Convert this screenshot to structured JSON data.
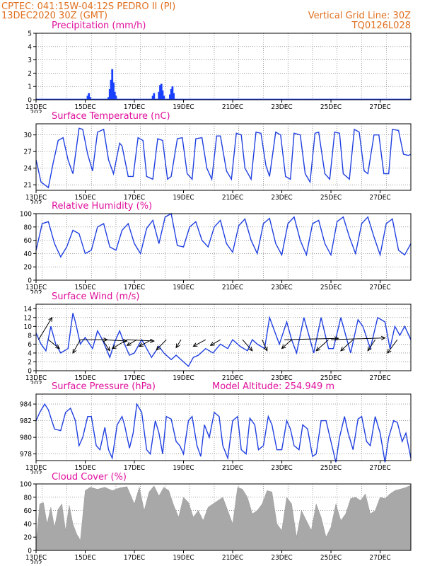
{
  "header": {
    "line1": "CPTEC:   041:15W-04:12S   PEDRO II (PI)",
    "line2": "13DEC2020 30Z (GMT)",
    "grid_note": "Vertical Grid Line: 30Z",
    "code": "TQ0126L028"
  },
  "colors": {
    "header": "#e07020",
    "title": "#e0109c",
    "line": "#2040e0",
    "bar": "#1a40ff",
    "cloud": "#a8a8a8",
    "wind_arrow": "#000000"
  },
  "x_axis": {
    "labels": [
      "13DEC",
      "15DEC",
      "17DEC",
      "19DEC",
      "21DEC",
      "23DEC",
      "25DEC",
      "27DEC"
    ],
    "positions_days": [
      0,
      2,
      4,
      6,
      8,
      10,
      12,
      14
    ],
    "range_days": [
      0,
      15.25
    ],
    "clipped_label": "202"
  },
  "chart_data": [
    {
      "type": "bar",
      "title": "Precipitation (mm/h)",
      "ylim": [
        0,
        5
      ],
      "yticks": [
        0,
        1,
        2,
        3,
        4,
        5
      ],
      "x_days": [
        2.1,
        2.15,
        2.2,
        2.95,
        3.0,
        3.05,
        3.1,
        3.15,
        3.2,
        3.25,
        4.75,
        4.8,
        5.0,
        5.05,
        5.1,
        5.15,
        5.2,
        5.45,
        5.5,
        5.55,
        5.6,
        7.0,
        10.5,
        11.0
      ],
      "values": [
        0.3,
        0.5,
        0.2,
        0.2,
        0.8,
        1.5,
        2.3,
        1.3,
        0.6,
        0.3,
        0.3,
        0.5,
        0.6,
        1.1,
        1.2,
        0.7,
        0.3,
        0.4,
        0.8,
        1.0,
        0.5,
        0.05,
        0.05,
        0.05
      ]
    },
    {
      "type": "line",
      "title": "Surface Temperature (nC)",
      "ylim": [
        20,
        32
      ],
      "yticks": [
        21,
        24,
        27,
        30
      ],
      "x_days": [
        0,
        0.2,
        0.35,
        0.5,
        0.7,
        0.9,
        1.1,
        1.3,
        1.5,
        1.75,
        1.9,
        2.1,
        2.3,
        2.5,
        2.75,
        2.95,
        3.15,
        3.4,
        3.5,
        3.75,
        3.95,
        4.15,
        4.35,
        4.5,
        4.75,
        4.95,
        5.15,
        5.35,
        5.5,
        5.75,
        5.95,
        6.15,
        6.35,
        6.5,
        6.75,
        6.95,
        7.15,
        7.35,
        7.5,
        7.75,
        7.95,
        8.15,
        8.35,
        8.5,
        8.75,
        8.95,
        9.15,
        9.35,
        9.5,
        9.75,
        9.95,
        10.15,
        10.35,
        10.5,
        10.75,
        10.95,
        11.15,
        11.35,
        11.5,
        11.75,
        11.95,
        12.15,
        12.35,
        12.5,
        12.75,
        12.95,
        13.15,
        13.35,
        13.5,
        13.75,
        13.95,
        14.15,
        14.35,
        14.5,
        14.75,
        14.95,
        15.15,
        15.25
      ],
      "values": [
        25.5,
        21.5,
        21.0,
        20.5,
        25.0,
        29.0,
        29.5,
        25.5,
        23.0,
        31.2,
        31.0,
        26.5,
        23.5,
        30.5,
        31.0,
        25.5,
        23.0,
        28.5,
        28.0,
        22.5,
        22.5,
        29.5,
        29.0,
        22.5,
        22.0,
        29.3,
        29.0,
        22.0,
        22.5,
        29.3,
        29.5,
        23.0,
        22.0,
        29.3,
        29.5,
        24.0,
        22.0,
        29.8,
        29.8,
        23.5,
        22.0,
        30.3,
        30.0,
        24.0,
        22.0,
        30.5,
        30.3,
        24.5,
        22.5,
        30.5,
        30.0,
        22.5,
        22.0,
        30.3,
        30.0,
        23.0,
        21.5,
        30.3,
        30.5,
        23.0,
        22.0,
        30.5,
        30.3,
        23.0,
        22.0,
        31.0,
        30.5,
        23.5,
        23.0,
        30.0,
        30.0,
        23.0,
        23.0,
        31.0,
        30.8,
        26.5,
        26.3,
        26.5
      ]
    },
    {
      "type": "line",
      "title": "Relative Humidity (%)",
      "ylim": [
        0,
        100
      ],
      "yticks": [
        0,
        20,
        40,
        60,
        80,
        100
      ],
      "x_days": [
        0,
        0.25,
        0.5,
        0.75,
        1.0,
        1.25,
        1.5,
        1.75,
        2.0,
        2.25,
        2.5,
        2.75,
        3.0,
        3.25,
        3.5,
        3.75,
        4.0,
        4.25,
        4.5,
        4.75,
        5.0,
        5.25,
        5.5,
        5.75,
        6.0,
        6.25,
        6.5,
        6.75,
        7.0,
        7.25,
        7.5,
        7.75,
        8.0,
        8.25,
        8.5,
        8.75,
        9.0,
        9.25,
        9.5,
        9.75,
        10.0,
        10.25,
        10.5,
        10.75,
        11.0,
        11.25,
        11.5,
        11.75,
        12.0,
        12.25,
        12.5,
        12.75,
        13.0,
        13.25,
        13.5,
        13.75,
        14.0,
        14.25,
        14.5,
        14.75,
        15.0,
        15.25
      ],
      "values": [
        45,
        85,
        88,
        55,
        35,
        50,
        75,
        70,
        40,
        45,
        80,
        85,
        50,
        45,
        75,
        85,
        55,
        40,
        78,
        90,
        55,
        95,
        100,
        52,
        50,
        80,
        88,
        60,
        50,
        80,
        90,
        55,
        42,
        82,
        92,
        60,
        40,
        85,
        93,
        55,
        38,
        85,
        95,
        60,
        38,
        85,
        90,
        55,
        38,
        88,
        95,
        65,
        40,
        85,
        95,
        65,
        38,
        85,
        92,
        45,
        38,
        55
      ]
    },
    {
      "type": "line",
      "title": "Surface Wind (m/s)",
      "ylim": [
        0,
        15
      ],
      "yticks": [
        0,
        2,
        4,
        6,
        8,
        10,
        12,
        14
      ],
      "x_days": [
        0,
        0.2,
        0.4,
        0.6,
        0.8,
        1.0,
        1.3,
        1.5,
        1.6,
        1.8,
        2.0,
        2.3,
        2.5,
        2.7,
        3.0,
        3.2,
        3.4,
        3.6,
        3.8,
        4.0,
        4.3,
        4.5,
        4.7,
        5.0,
        5.2,
        5.5,
        5.7,
        6.0,
        6.2,
        6.4,
        6.6,
        6.9,
        7.2,
        7.5,
        7.8,
        8.0,
        8.3,
        8.6,
        8.8,
        9.0,
        9.3,
        9.5,
        9.7,
        9.9,
        10.2,
        10.4,
        10.6,
        10.9,
        11.1,
        11.3,
        11.6,
        11.9,
        12.1,
        12.4,
        12.6,
        12.8,
        13.1,
        13.3,
        13.6,
        13.9,
        14.2,
        14.4,
        14.6,
        14.8,
        15.0,
        15.25
      ],
      "values": [
        8.5,
        6.0,
        4.5,
        10.0,
        6.0,
        4.0,
        5.0,
        13.0,
        11.0,
        6.0,
        7.5,
        5.0,
        9.0,
        7.0,
        3.0,
        6.5,
        9.0,
        6.0,
        3.5,
        4.0,
        7.0,
        5.0,
        3.0,
        5.5,
        4.0,
        2.5,
        3.5,
        2.0,
        1.0,
        3.0,
        3.5,
        5.0,
        4.0,
        6.0,
        5.0,
        7.0,
        5.5,
        4.5,
        7.0,
        6.0,
        5.0,
        12.0,
        9.0,
        6.0,
        11.0,
        7.0,
        4.0,
        12.0,
        8.0,
        4.0,
        12.0,
        5.0,
        5.0,
        12.0,
        8.0,
        4.0,
        11.5,
        10.0,
        5.0,
        12.0,
        11.0,
        5.0,
        10.0,
        8.0,
        10.0,
        7.0
      ],
      "arrows": [
        {
          "x_days": 0.1,
          "dx": 0.55,
          "dy": 5.0
        },
        {
          "x_days": 0.5,
          "dx": 0.45,
          "dy": -2.0
        },
        {
          "x_days": 1.8,
          "dx": 1.1,
          "dy": 0.0
        },
        {
          "x_days": 1.8,
          "dx": -0.3,
          "dy": -3.0
        },
        {
          "x_days": 2.7,
          "dx": 1.0,
          "dy": -0.3
        },
        {
          "x_days": 2.7,
          "dx": 0.3,
          "dy": -2.5
        },
        {
          "x_days": 3.7,
          "dx": 1.1,
          "dy": -0.3
        },
        {
          "x_days": 3.7,
          "dx": -0.6,
          "dy": -2.0
        },
        {
          "x_days": 4.1,
          "dx": -0.4,
          "dy": -1.3
        },
        {
          "x_days": 4.7,
          "dx": -0.5,
          "dy": -1.5
        },
        {
          "x_days": 5.3,
          "dx": -0.4,
          "dy": -2.3
        },
        {
          "x_days": 5.9,
          "dx": -0.2,
          "dy": -1.8
        },
        {
          "x_days": 6.9,
          "dx": -0.5,
          "dy": -1.5
        },
        {
          "x_days": 7.5,
          "dx": -0.4,
          "dy": -1.3
        },
        {
          "x_days": 8.4,
          "dx": 0.4,
          "dy": -2.5
        },
        {
          "x_days": 9.2,
          "dx": 0.2,
          "dy": -2.5
        },
        {
          "x_days": 10.4,
          "dx": -0.4,
          "dy": -2.0
        },
        {
          "x_days": 10.1,
          "dx": 2.2,
          "dy": 0.3
        },
        {
          "x_days": 11.9,
          "dx": -0.5,
          "dy": -2.5
        },
        {
          "x_days": 12.9,
          "dx": -0.5,
          "dy": -2.5
        },
        {
          "x_days": 12.0,
          "dx": 2.2,
          "dy": 0.4
        },
        {
          "x_days": 13.8,
          "dx": -0.3,
          "dy": -2.5
        },
        {
          "x_days": 14.7,
          "dx": -0.4,
          "dy": -3.0
        }
      ]
    },
    {
      "type": "line",
      "title": "Surface Pressure (hPa)",
      "annotation": "Model Altitude: 254.949  m",
      "ylim": [
        977.2,
        985.2
      ],
      "yticks": [
        978,
        980,
        982,
        984
      ],
      "x_days": [
        0,
        0.15,
        0.35,
        0.5,
        0.75,
        1.0,
        1.2,
        1.4,
        1.6,
        1.75,
        1.9,
        2.1,
        2.25,
        2.45,
        2.6,
        2.8,
        2.95,
        3.1,
        3.3,
        3.5,
        3.6,
        3.8,
        3.95,
        4.1,
        4.3,
        4.5,
        4.65,
        4.85,
        5.0,
        5.15,
        5.3,
        5.5,
        5.7,
        5.85,
        6.0,
        6.2,
        6.35,
        6.55,
        6.7,
        6.85,
        7.05,
        7.25,
        7.45,
        7.6,
        7.8,
        8.0,
        8.2,
        8.35,
        8.55,
        8.7,
        8.9,
        9.05,
        9.25,
        9.45,
        9.6,
        9.8,
        10.0,
        10.2,
        10.35,
        10.5,
        10.7,
        10.85,
        11.05,
        11.25,
        11.4,
        11.6,
        11.8,
        12.0,
        12.2,
        12.35,
        12.55,
        12.7,
        12.9,
        13.1,
        13.25,
        13.45,
        13.6,
        13.8,
        14.0,
        14.2,
        14.35,
        14.55,
        14.7,
        14.9,
        15.05,
        15.25
      ],
      "values": [
        982.0,
        983.0,
        984.0,
        983.3,
        981.0,
        980.8,
        983.0,
        983.5,
        982.0,
        979.0,
        980.0,
        982.5,
        982.5,
        979.0,
        978.5,
        981.2,
        978.5,
        977.5,
        981.5,
        982.5,
        981.5,
        978.7,
        980.5,
        984.0,
        983.0,
        978.5,
        978.0,
        982.0,
        980.5,
        978.0,
        982.5,
        982.2,
        979.5,
        979.0,
        978.0,
        982.0,
        982.5,
        979.0,
        977.7,
        981.5,
        980.0,
        983.0,
        982.5,
        979.0,
        977.5,
        982.0,
        982.5,
        978.5,
        978.0,
        982.3,
        981.5,
        978.5,
        979.0,
        982.5,
        981.5,
        978.5,
        978.5,
        982.0,
        981.0,
        979.0,
        978.5,
        981.5,
        981.0,
        977.7,
        978.0,
        982.0,
        982.0,
        979.5,
        977.0,
        980.0,
        982.5,
        980.5,
        978.5,
        982.2,
        982.5,
        979.5,
        979.0,
        982.5,
        980.5,
        977.0,
        980.0,
        982.0,
        981.8,
        979.5,
        980.5,
        977.5
      ]
    },
    {
      "type": "area",
      "title": "Cloud Cover (%)",
      "ylim": [
        0,
        100
      ],
      "yticks": [
        0,
        20,
        40,
        60,
        80,
        100
      ],
      "x_days": [
        0,
        0.15,
        0.3,
        0.45,
        0.6,
        0.75,
        0.9,
        1.05,
        1.2,
        1.35,
        1.5,
        1.65,
        1.8,
        2.0,
        2.2,
        2.5,
        2.8,
        3.1,
        3.4,
        3.7,
        4.0,
        4.2,
        4.4,
        4.6,
        4.8,
        5.0,
        5.2,
        5.4,
        5.6,
        5.8,
        6.0,
        6.2,
        6.4,
        6.6,
        6.8,
        7.0,
        7.2,
        7.4,
        7.6,
        7.8,
        8.0,
        8.2,
        8.4,
        8.6,
        8.8,
        9.0,
        9.2,
        9.4,
        9.6,
        9.8,
        10.0,
        10.2,
        10.4,
        10.6,
        10.8,
        11.0,
        11.2,
        11.4,
        11.6,
        11.8,
        12.0,
        12.2,
        12.4,
        12.6,
        12.8,
        13.0,
        13.2,
        13.4,
        13.6,
        13.8,
        14.0,
        14.2,
        14.4,
        14.6,
        14.8,
        15.0,
        15.25
      ],
      "values": [
        10,
        70,
        72,
        40,
        65,
        35,
        62,
        70,
        30,
        68,
        40,
        25,
        15,
        90,
        95,
        92,
        95,
        90,
        94,
        96,
        70,
        95,
        60,
        88,
        97,
        82,
        95,
        90,
        68,
        50,
        80,
        72,
        50,
        60,
        45,
        65,
        70,
        75,
        80,
        60,
        40,
        95,
        92,
        80,
        55,
        60,
        70,
        90,
        88,
        40,
        30,
        80,
        70,
        20,
        60,
        45,
        30,
        70,
        50,
        20,
        35,
        70,
        45,
        55,
        78,
        80,
        75,
        85,
        55,
        60,
        80,
        78,
        85,
        90,
        92,
        94,
        98
      ]
    }
  ]
}
